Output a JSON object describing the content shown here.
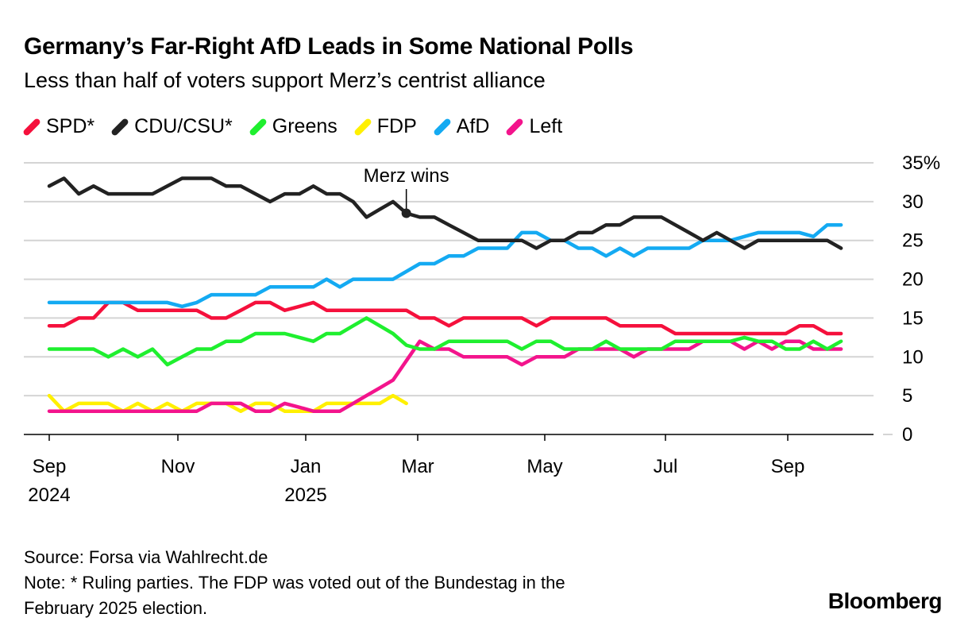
{
  "header": {
    "title": "Germany’s Far-Right AfD Leads in Some National Polls",
    "subtitle": "Less than half of voters support Merz’s centrist alliance"
  },
  "chart_data": {
    "type": "line",
    "title": "Germany’s Far-Right AfD Leads in Some National Polls",
    "subtitle": "Less than half of voters support Merz’s centrist alliance",
    "xlabel": "",
    "ylabel": "",
    "ylim": [
      0,
      35
    ],
    "y_ticks": [
      "0",
      "5",
      "10",
      "15",
      "20",
      "25",
      "30",
      "35%"
    ],
    "y_tick_values": [
      0,
      5,
      10,
      15,
      20,
      25,
      30,
      35
    ],
    "x_ticks": [
      {
        "date": "2024-09-01",
        "label": "Sep",
        "year": "2024"
      },
      {
        "date": "2024-11-01",
        "label": "Nov",
        "year": ""
      },
      {
        "date": "2025-01-01",
        "label": "Jan",
        "year": "2025"
      },
      {
        "date": "2025-03-01",
        "label": "Mar",
        "year": ""
      },
      {
        "date": "2025-05-01",
        "label": "May",
        "year": ""
      },
      {
        "date": "2025-07-01",
        "label": "Jul",
        "year": ""
      },
      {
        "date": "2025-09-01",
        "label": "Sep",
        "year": ""
      }
    ],
    "grid": true,
    "y_axis_position": "right",
    "legend_position": "top-left",
    "x": [
      "2024-09-01",
      "2024-09-08",
      "2024-09-15",
      "2024-09-22",
      "2024-09-29",
      "2024-10-06",
      "2024-10-13",
      "2024-10-20",
      "2024-10-27",
      "2024-11-03",
      "2024-11-10",
      "2024-11-17",
      "2024-11-24",
      "2024-12-01",
      "2024-12-08",
      "2024-12-15",
      "2024-12-22",
      "2024-12-29",
      "2025-01-05",
      "2025-01-12",
      "2025-01-19",
      "2025-01-26",
      "2025-02-02",
      "2025-02-09",
      "2025-02-16",
      "2025-02-23",
      "2025-03-02",
      "2025-03-09",
      "2025-03-16",
      "2025-03-23",
      "2025-03-30",
      "2025-04-06",
      "2025-04-13",
      "2025-04-20",
      "2025-04-27",
      "2025-05-04",
      "2025-05-11",
      "2025-05-18",
      "2025-05-25",
      "2025-06-01",
      "2025-06-08",
      "2025-06-15",
      "2025-06-22",
      "2025-06-29",
      "2025-07-06",
      "2025-07-13",
      "2025-07-20",
      "2025-07-27",
      "2025-08-03",
      "2025-08-10",
      "2025-08-17",
      "2025-08-24",
      "2025-08-31",
      "2025-09-07",
      "2025-09-14",
      "2025-09-21",
      "2025-09-28"
    ],
    "series": [
      {
        "name": "SPD*",
        "color": "#f5103c",
        "values": [
          14,
          14,
          15,
          15,
          17,
          17,
          16,
          16,
          16,
          16,
          16,
          15,
          15,
          16,
          17,
          17,
          16,
          16.5,
          17,
          16,
          16,
          16,
          16,
          16,
          16,
          16,
          15,
          15,
          14,
          15,
          15,
          15,
          15,
          15,
          14,
          15,
          15,
          15,
          15,
          15,
          14,
          14,
          14,
          14,
          13,
          13,
          13,
          13,
          13,
          13,
          13,
          13,
          13,
          14,
          14,
          13,
          13
        ]
      },
      {
        "name": "CDU/CSU*",
        "color": "#222222",
        "values": [
          32,
          33,
          31,
          32,
          31,
          31,
          31,
          31,
          32,
          33,
          33,
          33,
          32,
          32,
          31,
          30,
          31,
          31,
          32,
          31,
          31,
          30,
          28,
          29,
          30,
          28.5,
          28,
          28,
          27,
          26,
          25,
          25,
          25,
          25,
          24,
          25,
          25,
          26,
          26,
          27,
          27,
          28,
          28,
          28,
          27,
          26,
          25,
          26,
          25,
          24,
          25,
          25,
          25,
          25,
          25,
          25,
          24
        ]
      },
      {
        "name": "Greens",
        "color": "#1fef2f",
        "values": [
          11,
          11,
          11,
          11,
          10,
          11,
          10,
          11,
          9,
          10,
          11,
          11,
          12,
          12,
          13,
          13,
          13,
          12.5,
          12,
          13,
          13,
          14,
          15,
          14,
          13,
          11.5,
          11,
          11,
          12,
          12,
          12,
          12,
          12,
          11,
          12,
          12,
          11,
          11,
          11,
          12,
          11,
          11,
          11,
          11,
          12,
          12,
          12,
          12,
          12,
          12.5,
          12,
          12,
          11,
          11,
          12,
          11,
          12
        ]
      },
      {
        "name": "FDP",
        "color": "#fff000",
        "values": [
          5,
          3,
          4,
          4,
          4,
          3,
          4,
          3,
          4,
          3,
          4,
          4,
          4,
          3,
          4,
          4,
          3,
          3,
          3,
          4,
          4,
          4,
          4,
          4,
          5,
          4,
          null,
          null,
          null,
          null,
          null,
          null,
          null,
          null,
          null,
          null,
          null,
          null,
          null,
          null,
          null,
          null,
          null,
          null,
          null,
          null,
          null,
          null,
          null,
          null,
          null,
          null,
          null,
          null,
          null,
          null,
          null
        ]
      },
      {
        "name": "AfD",
        "color": "#14aaf2",
        "values": [
          17,
          17,
          17,
          17,
          17,
          17,
          17,
          17,
          17,
          16.5,
          17,
          18,
          18,
          18,
          18,
          19,
          19,
          19,
          19,
          20,
          19,
          20,
          20,
          20,
          20,
          21,
          22,
          22,
          23,
          23,
          24,
          24,
          24,
          26,
          26,
          25,
          25,
          24,
          24,
          23,
          24,
          23,
          24,
          24,
          24,
          24,
          25,
          25,
          25,
          25.5,
          26,
          26,
          26,
          26,
          25.5,
          27,
          27
        ]
      },
      {
        "name": "Left",
        "color": "#f3148c",
        "values": [
          3,
          3,
          3,
          3,
          3,
          3,
          3,
          3,
          3,
          3,
          3,
          4,
          4,
          4,
          3,
          3,
          4,
          3.5,
          3,
          3,
          3,
          4,
          5,
          6,
          7,
          9.5,
          12,
          11,
          11,
          10,
          10,
          10,
          10,
          9,
          10,
          10,
          10,
          11,
          11,
          11,
          11,
          10,
          11,
          11,
          11,
          11,
          12,
          12,
          12,
          11,
          12,
          11,
          12,
          12,
          11,
          11,
          11
        ]
      }
    ],
    "annotations": [
      {
        "text": "Merz wins",
        "date": "2025-02-23",
        "value": 28.5,
        "series": "CDU/CSU*"
      }
    ]
  },
  "footer": {
    "source": "Source: Forsa via Wahlrecht.de",
    "note_line1": "Note: * Ruling parties. The FDP was voted out of the Bundestag in the",
    "note_line2": "February 2025 election.",
    "logo": "Bloomberg"
  }
}
